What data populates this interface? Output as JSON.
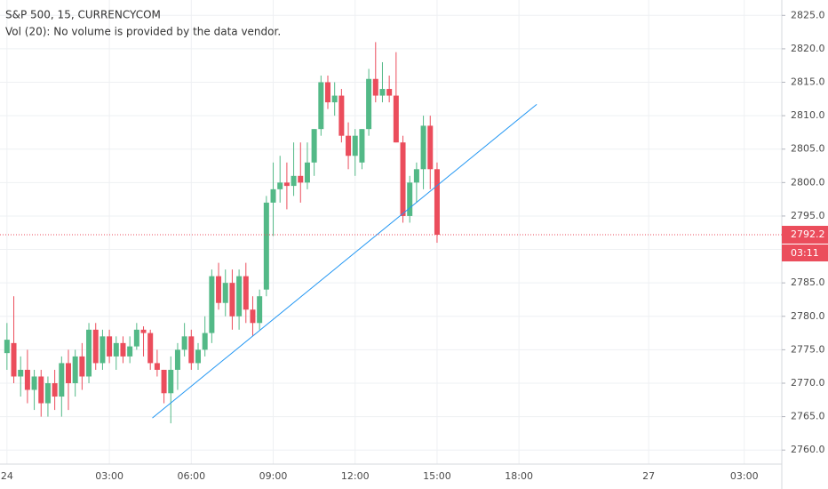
{
  "chart_data": {
    "type": "candlestick",
    "title": "S&P 500, 15, CURRENCYCOM",
    "subtitle": "Vol (20): No volume is provided by the data vendor.",
    "categories": [
      "24",
      null,
      null,
      null,
      null,
      null,
      null,
      null,
      null,
      null,
      null,
      null,
      null,
      null,
      null,
      "03:00",
      null,
      null,
      null,
      null,
      null,
      null,
      null,
      null,
      null,
      null,
      null,
      "06:00",
      null,
      null,
      null,
      null,
      null,
      null,
      null,
      null,
      null,
      null,
      null,
      "09:00",
      null,
      null,
      null,
      null,
      null,
      null,
      null,
      null,
      null,
      null,
      null,
      "12:00",
      null,
      null,
      null,
      null,
      null,
      null,
      null,
      null,
      null,
      null,
      null,
      "15:00",
      null,
      null,
      null,
      null,
      null,
      null,
      null,
      null,
      null,
      null,
      null,
      "18:00",
      null,
      null,
      null,
      null,
      null,
      null,
      null,
      null,
      null,
      null,
      null,
      null,
      null,
      null,
      null,
      null,
      null,
      null,
      "27",
      null,
      null,
      null,
      null,
      null,
      null,
      null,
      null,
      null,
      null,
      null,
      null,
      null,
      "03:00",
      null,
      null,
      null,
      null,
      null
    ],
    "open": [
      2774.5,
      2776,
      2771,
      2772,
      2769,
      2771,
      2767,
      2770,
      2768,
      2773,
      2770,
      2774,
      2771,
      2778,
      2773,
      2777,
      2774,
      2776,
      2774,
      2775.5,
      2778,
      2777.5,
      2773,
      2772,
      2768.5,
      2772,
      2775,
      2777,
      2773,
      2775,
      2777.5,
      2786,
      2782,
      2785,
      2780,
      2786,
      2781,
      2779,
      2784,
      2797,
      2799,
      2800,
      2799.5,
      2801,
      2800,
      2803,
      2808,
      2815,
      2812,
      2813,
      2807,
      2804,
      2803,
      2808,
      2815.5,
      2813,
      2814,
      2813,
      2806,
      2795,
      2800,
      2802,
      2808.5,
      2802,
      null,
      null,
      null,
      null,
      null,
      null,
      null,
      null,
      null,
      null,
      null,
      null,
      null,
      null,
      null,
      null,
      null,
      null,
      null,
      null,
      null,
      null,
      null,
      null,
      null,
      null,
      null,
      null,
      null,
      null,
      null,
      null,
      null,
      null,
      null,
      null,
      null,
      null,
      null,
      null,
      null,
      null,
      null,
      null,
      null,
      null,
      null,
      null,
      null,
      null
    ],
    "high": [
      2779,
      2783,
      2774,
      2775,
      2772,
      2772,
      2771,
      2772,
      2774,
      2775,
      2775,
      2776,
      2779,
      2779,
      2778,
      2778,
      2777,
      2777,
      2777,
      2779,
      2778.5,
      2778,
      2775,
      2772,
      2774,
      2776,
      2779,
      2778,
      2776,
      2780,
      2787,
      2788,
      2787,
      2787,
      2787,
      2788,
      2783,
      2784,
      2798,
      2803,
      2804,
      2803,
      2806,
      2806,
      2806,
      2808,
      2816,
      2816,
      2815,
      2814,
      2809,
      2808,
      2808,
      2817,
      2821,
      2818,
      2816,
      2819.5,
      2807,
      2801,
      2803,
      2810,
      2810,
      2803,
      null,
      null,
      null,
      null,
      null,
      null,
      null,
      null,
      null,
      null,
      null,
      null,
      null,
      null,
      null,
      null,
      null,
      null,
      null,
      null,
      null,
      null,
      null,
      null,
      null,
      null,
      null,
      null,
      null,
      null,
      null,
      null,
      null,
      null,
      null,
      null,
      null,
      null,
      null,
      null,
      null,
      null,
      null,
      null,
      null,
      null,
      null,
      null,
      null,
      null
    ],
    "low": [
      2772,
      2770,
      2768,
      2767,
      2766,
      2765,
      2765,
      2766,
      2765,
      2766,
      2768,
      2769,
      2770,
      2772,
      2772,
      2773,
      2772,
      2773,
      2773,
      2775,
      2774,
      2772,
      2771,
      2767,
      2764,
      2769,
      2774,
      2772,
      2772,
      2774,
      2776,
      2781,
      2780,
      2778,
      2778,
      2779,
      2777,
      2778,
      2783,
      2792,
      2797,
      2796,
      2798,
      2797,
      2799,
      2801,
      2807,
      2811,
      2810,
      2806,
      2802,
      2801,
      2802,
      2807,
      2812,
      2812,
      2812,
      2806,
      2794,
      2794,
      2797,
      2799,
      2799,
      2791,
      null,
      null,
      null,
      null,
      null,
      null,
      null,
      null,
      null,
      null,
      null,
      null,
      null,
      null,
      null,
      null,
      null,
      null,
      null,
      null,
      null,
      null,
      null,
      null,
      null,
      null,
      null,
      null,
      null,
      null,
      null,
      null,
      null,
      null,
      null,
      null,
      null,
      null,
      null,
      null,
      null,
      null,
      null,
      null,
      null,
      null,
      null,
      null,
      null,
      null
    ],
    "close": [
      2776.5,
      2771,
      2772,
      2769,
      2771,
      2767,
      2770,
      2768,
      2773,
      2770,
      2774,
      2771,
      2778,
      2773,
      2777,
      2774,
      2776,
      2774,
      2775.5,
      2778,
      2777.5,
      2773,
      2772,
      2768.5,
      2772,
      2775,
      2777,
      2773,
      2775,
      2777.5,
      2786,
      2782,
      2785,
      2780,
      2786,
      2781,
      2779,
      2783,
      2797,
      2799,
      2800,
      2799.5,
      2801,
      2800,
      2803,
      2808,
      2815,
      2812,
      2813,
      2807,
      2804,
      2807,
      2808,
      2815.5,
      2813,
      2814,
      2813,
      2806,
      2795,
      2800,
      2802,
      2808.5,
      2802,
      2792.2,
      null,
      null,
      null,
      null,
      null,
      null,
      null,
      null,
      null,
      null,
      null,
      null,
      null,
      null,
      null,
      null,
      null,
      null,
      null,
      null,
      null,
      null,
      null,
      null,
      null,
      null,
      null,
      null,
      null,
      null,
      null,
      null,
      null,
      null,
      null,
      null,
      null,
      null,
      null,
      null,
      null,
      null,
      null,
      null,
      null,
      null,
      null,
      null,
      null,
      null
    ],
    "up_color": "#53b987",
    "down_color": "#eb4d5c",
    "trend_line": {
      "color": "#2196f3",
      "x": [
        21.3,
        77.6
      ],
      "y": [
        2764.8,
        2811.7
      ]
    },
    "last_price": {
      "value": 2792.2,
      "countdown": "03:11",
      "color": "#eb4d5c"
    },
    "ylim": [
      2757.9,
      2827.3
    ],
    "yticks": [
      {
        "value": 2760,
        "label": "2760.0"
      },
      {
        "value": 2765,
        "label": "2765.0"
      },
      {
        "value": 2770,
        "label": "2770.0"
      },
      {
        "value": 2775,
        "label": "2775.0"
      },
      {
        "value": 2780,
        "label": "2780.0"
      },
      {
        "value": 2785,
        "label": "2785.0"
      },
      {
        "value": 2790,
        "label": "2790.0"
      },
      {
        "value": 2795,
        "label": "2795.0"
      },
      {
        "value": 2800,
        "label": "2800.0"
      },
      {
        "value": 2805,
        "label": "2805.0"
      },
      {
        "value": 2810,
        "label": "2810.0"
      },
      {
        "value": 2815,
        "label": "2815.0"
      },
      {
        "value": 2820,
        "label": "2820.0"
      },
      {
        "value": 2825,
        "label": "2825.0"
      }
    ],
    "grid": true
  }
}
